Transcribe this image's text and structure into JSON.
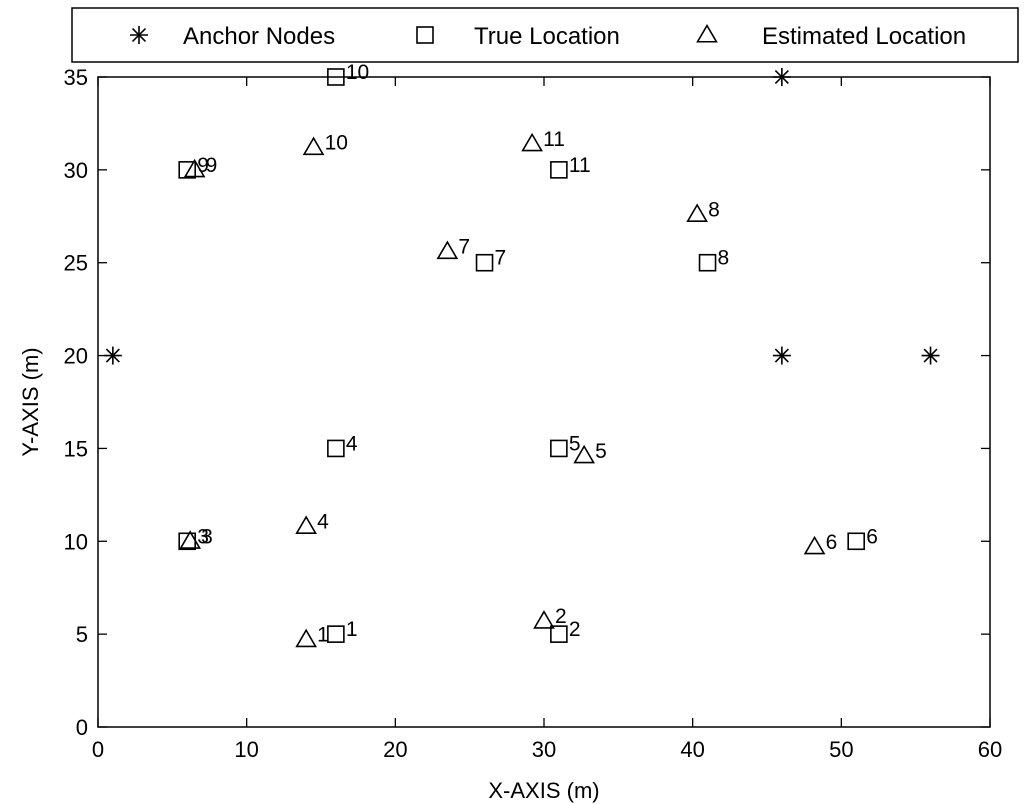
{
  "chart_data": {
    "type": "scatter",
    "title": "",
    "xlabel": "X-AXIS (m)",
    "ylabel": "Y-AXIS (m)",
    "xlim": [
      0,
      60
    ],
    "ylim": [
      0,
      35
    ],
    "xticks": [
      "0",
      "10",
      "20",
      "30",
      "40",
      "50",
      "60"
    ],
    "yticks": [
      "0",
      "5",
      "10",
      "15",
      "20",
      "25",
      "30",
      "35"
    ],
    "grid": false,
    "legend_position": "top",
    "series": [
      {
        "name": "Anchor Nodes",
        "marker": "asterisk",
        "points": [
          {
            "x": 1,
            "y": 20,
            "label": ""
          },
          {
            "x": 46,
            "y": 35,
            "label": ""
          },
          {
            "x": 46,
            "y": 20,
            "label": ""
          },
          {
            "x": 56,
            "y": 20,
            "label": ""
          }
        ]
      },
      {
        "name": "True Location",
        "marker": "square",
        "points": [
          {
            "x": 16,
            "y": 5,
            "label": "1"
          },
          {
            "x": 31,
            "y": 5,
            "label": "2"
          },
          {
            "x": 6,
            "y": 10,
            "label": "3"
          },
          {
            "x": 16,
            "y": 15,
            "label": "4"
          },
          {
            "x": 31,
            "y": 15,
            "label": "5"
          },
          {
            "x": 51,
            "y": 10,
            "label": "6"
          },
          {
            "x": 26,
            "y": 25,
            "label": "7"
          },
          {
            "x": 41,
            "y": 25,
            "label": "8"
          },
          {
            "x": 6,
            "y": 30,
            "label": "9"
          },
          {
            "x": 16,
            "y": 35,
            "label": "10"
          },
          {
            "x": 31,
            "y": 30,
            "label": "11"
          }
        ]
      },
      {
        "name": "Estimated Location",
        "marker": "triangle",
        "points": [
          {
            "x": 14,
            "y": 4.7,
            "label": "1"
          },
          {
            "x": 30,
            "y": 5.7,
            "label": "2"
          },
          {
            "x": 6.2,
            "y": 10,
            "label": "3"
          },
          {
            "x": 14,
            "y": 10.8,
            "label": "4"
          },
          {
            "x": 32.7,
            "y": 14.6,
            "label": "5"
          },
          {
            "x": 48.2,
            "y": 9.7,
            "label": "6"
          },
          {
            "x": 23.5,
            "y": 25.6,
            "label": "7"
          },
          {
            "x": 40.3,
            "y": 27.6,
            "label": "8"
          },
          {
            "x": 6.5,
            "y": 30,
            "label": "9"
          },
          {
            "x": 14.5,
            "y": 31.2,
            "label": "10"
          },
          {
            "x": 29.2,
            "y": 31.4,
            "label": "11"
          }
        ]
      }
    ]
  }
}
